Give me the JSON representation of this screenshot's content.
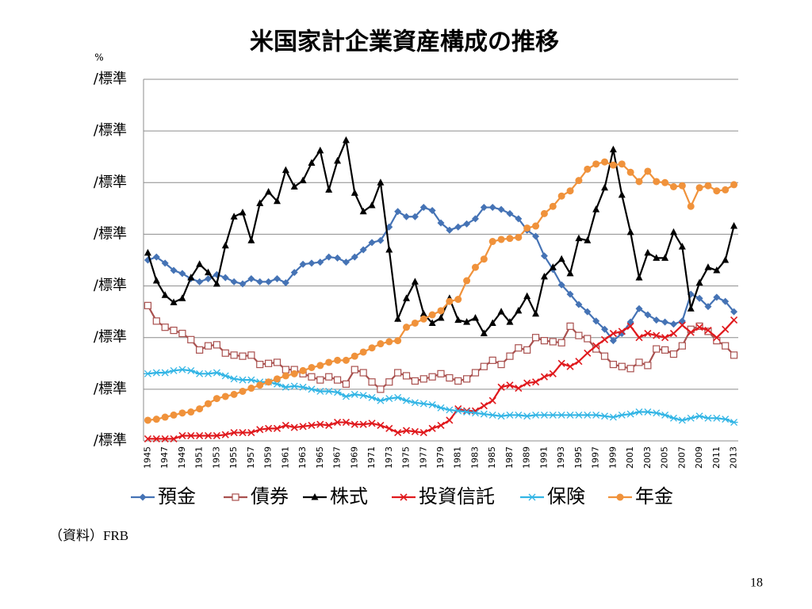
{
  "chart_data": {
    "type": "line",
    "title": "米国家計企業資産構成の推移",
    "y_unit": "%",
    "categories": [
      "1945",
      null,
      "1947",
      null,
      "1949",
      null,
      "1951",
      null,
      "1953",
      null,
      "1955",
      null,
      "1957",
      null,
      "1959",
      null,
      "1961",
      null,
      "1963",
      null,
      "1965",
      null,
      "1967",
      null,
      "1969",
      null,
      "1971",
      null,
      "1973",
      null,
      "1975",
      null,
      "1977",
      null,
      "1979",
      null,
      "1981",
      null,
      "1983",
      null,
      "1985",
      null,
      "1987",
      null,
      "1989",
      null,
      "1991",
      null,
      "1993",
      null,
      "1995",
      null,
      "1997",
      null,
      "1999",
      null,
      "2001",
      null,
      "2003",
      null,
      "2005",
      null,
      "2007",
      null,
      "2009",
      null,
      "2011",
      null,
      "2013"
    ],
    "ylim": [
      0,
      35
    ],
    "yticks": [
      {
        "value": 0,
        "label": "/標準"
      },
      {
        "value": 5,
        "label": "/標準"
      },
      {
        "value": 10,
        "label": "/標準"
      },
      {
        "value": 15,
        "label": "/標準"
      },
      {
        "value": 20,
        "label": "/標準"
      },
      {
        "value": 25,
        "label": "/標準"
      },
      {
        "value": 30,
        "label": "/標準"
      },
      {
        "value": 35,
        "label": "/標準"
      }
    ],
    "grid": true,
    "legend": "bottom",
    "series": [
      {
        "name": "預金",
        "color": "#4573b5",
        "marker": "diamond",
        "values": [
          17.5,
          17.8,
          17.2,
          16.5,
          16.2,
          15.7,
          15.4,
          15.7,
          16.1,
          15.8,
          15.4,
          15.2,
          15.7,
          15.4,
          15.4,
          15.7,
          15.3,
          16.3,
          17.1,
          17.2,
          17.3,
          17.8,
          17.7,
          17.3,
          17.8,
          18.5,
          19.2,
          19.4,
          20.7,
          22.2,
          21.7,
          21.7,
          22.6,
          22.3,
          21.1,
          20.4,
          20.7,
          21.0,
          21.5,
          22.6,
          22.6,
          22.4,
          22.0,
          21.5,
          20.4,
          19.8,
          17.9,
          16.6,
          15.1,
          14.2,
          13.2,
          12.5,
          11.6,
          10.8,
          9.7,
          10.4,
          11.5,
          12.8,
          12.2,
          11.7,
          11.5,
          11.3,
          11.6,
          14.2,
          13.8,
          13.0,
          13.9,
          13.5,
          12.5
        ]
      },
      {
        "name": "債券",
        "color": "#a9504e",
        "marker": "square",
        "values": [
          13.1,
          11.6,
          11.0,
          10.7,
          10.4,
          9.8,
          8.8,
          9.2,
          9.3,
          8.5,
          8.3,
          8.2,
          8.3,
          7.4,
          7.5,
          7.6,
          6.9,
          6.9,
          6.5,
          6.2,
          5.9,
          6.2,
          5.9,
          5.5,
          6.9,
          6.6,
          5.7,
          5.0,
          5.7,
          6.6,
          6.3,
          5.8,
          6.0,
          6.2,
          6.5,
          6.1,
          5.8,
          6.0,
          6.6,
          7.2,
          7.8,
          7.4,
          8.2,
          9.0,
          8.8,
          10.0,
          9.7,
          9.6,
          9.5,
          11.1,
          10.2,
          9.9,
          8.9,
          8.2,
          7.4,
          7.2,
          7.0,
          7.6,
          7.3,
          8.9,
          8.8,
          8.4,
          9.2,
          10.8,
          11.1,
          10.6,
          9.7,
          9.2,
          8.3
        ]
      },
      {
        "name": "株式",
        "color": "#000000",
        "marker": "triangle",
        "values": [
          18.2,
          15.5,
          14.1,
          13.4,
          13.8,
          15.8,
          17.1,
          16.3,
          15.2,
          18.9,
          21.7,
          22.1,
          19.4,
          23.0,
          24.1,
          23.2,
          26.2,
          24.6,
          25.2,
          26.9,
          28.1,
          24.3,
          27.1,
          29.1,
          24.0,
          22.2,
          22.8,
          25.0,
          18.5,
          11.8,
          13.8,
          15.4,
          12.3,
          11.4,
          11.9,
          13.8,
          11.7,
          11.5,
          11.9,
          10.4,
          11.4,
          12.5,
          11.5,
          12.6,
          14.0,
          12.3,
          15.9,
          16.8,
          17.6,
          16.2,
          19.6,
          19.4,
          22.4,
          24.5,
          28.2,
          23.8,
          20.2,
          15.8,
          18.2,
          17.7,
          17.7,
          20.2,
          18.8,
          12.8,
          15.3,
          16.8,
          16.5,
          17.5,
          20.8
        ]
      },
      {
        "name": "投資信託",
        "color": "#e0191d",
        "marker": "x",
        "values": [
          0.2,
          0.2,
          0.2,
          0.2,
          0.5,
          0.5,
          0.5,
          0.5,
          0.5,
          0.6,
          0.8,
          0.8,
          0.8,
          1.1,
          1.2,
          1.2,
          1.5,
          1.3,
          1.4,
          1.5,
          1.6,
          1.5,
          1.8,
          1.8,
          1.6,
          1.6,
          1.7,
          1.5,
          1.2,
          0.8,
          1.0,
          0.9,
          0.8,
          1.2,
          1.5,
          2.0,
          3.1,
          2.9,
          2.9,
          3.4,
          3.9,
          5.2,
          5.4,
          5.1,
          5.6,
          5.7,
          6.2,
          6.5,
          7.5,
          7.2,
          7.7,
          8.5,
          9.2,
          9.8,
          10.4,
          10.6,
          11.1,
          10.0,
          10.4,
          10.2,
          10.0,
          10.4,
          11.2,
          10.5,
          11.0,
          10.7,
          10.0,
          10.8,
          11.7
        ]
      },
      {
        "name": "保険",
        "color": "#33b5e5",
        "marker": "star",
        "values": [
          6.5,
          6.6,
          6.6,
          6.8,
          6.9,
          6.8,
          6.5,
          6.5,
          6.6,
          6.3,
          6.0,
          5.9,
          5.9,
          5.7,
          5.7,
          5.5,
          5.2,
          5.3,
          5.2,
          5.0,
          4.8,
          4.8,
          4.7,
          4.3,
          4.5,
          4.4,
          4.2,
          3.9,
          4.1,
          4.2,
          3.9,
          3.7,
          3.6,
          3.5,
          3.2,
          3.0,
          2.9,
          2.8,
          2.7,
          2.6,
          2.5,
          2.4,
          2.5,
          2.5,
          2.4,
          2.5,
          2.5,
          2.5,
          2.5,
          2.5,
          2.5,
          2.5,
          2.5,
          2.4,
          2.3,
          2.5,
          2.6,
          2.8,
          2.8,
          2.7,
          2.5,
          2.2,
          2.0,
          2.2,
          2.4,
          2.2,
          2.2,
          2.1,
          1.8
        ]
      },
      {
        "name": "年金",
        "color": "#f0923b",
        "marker": "circle",
        "values": [
          2.0,
          2.1,
          2.3,
          2.5,
          2.7,
          2.8,
          3.1,
          3.6,
          4.1,
          4.3,
          4.5,
          4.8,
          5.1,
          5.4,
          5.7,
          6.0,
          6.3,
          6.5,
          6.8,
          7.1,
          7.3,
          7.6,
          7.8,
          7.8,
          8.2,
          8.6,
          9.0,
          9.4,
          9.6,
          9.7,
          11.0,
          11.4,
          11.8,
          12.2,
          12.6,
          13.5,
          13.7,
          15.5,
          16.8,
          17.6,
          19.3,
          19.5,
          19.6,
          19.7,
          20.6,
          20.8,
          22.0,
          22.7,
          23.7,
          24.2,
          25.2,
          26.3,
          26.8,
          27.0,
          26.7,
          26.8,
          26.0,
          25.1,
          26.1,
          25.1,
          25.0,
          24.6,
          24.7,
          22.7,
          24.5,
          24.7,
          24.2,
          24.3,
          24.8
        ]
      }
    ]
  },
  "source": "（資料）FRB",
  "page_number": "18"
}
